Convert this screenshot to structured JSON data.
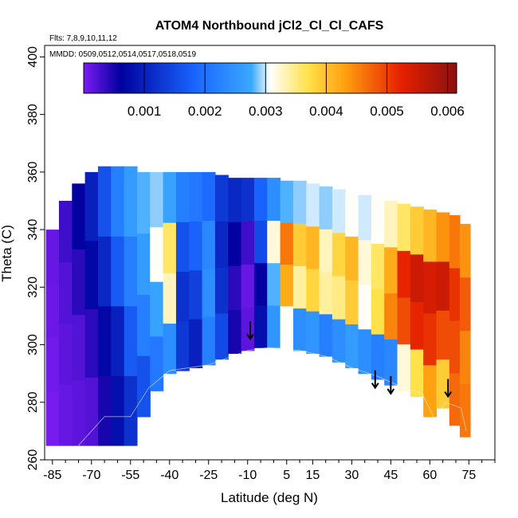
{
  "chart_data": {
    "type": "heatmap",
    "title": "ATOM4 Northbound jCl2_Cl_Cl_CAFS",
    "note_flights": "Flts: 7,8,9,10,11,12",
    "note_dates": "MMDD: 0509,0512,0514,0517,0518,0519",
    "xlabel": "Latitude (deg N)",
    "ylabel": "Theta (C)",
    "xlim": [
      -88,
      85
    ],
    "ylim": [
      260,
      404
    ],
    "x_ticks": [
      -85,
      -70,
      -55,
      -40,
      -25,
      -10,
      5,
      15,
      30,
      45,
      60,
      75
    ],
    "x_tick_labels": [
      "-85",
      "-70",
      "-55",
      "-40",
      "-25",
      "-10",
      "5",
      "15",
      "30",
      "45",
      "60",
      "75"
    ],
    "y_ticks": [
      260,
      280,
      300,
      320,
      340,
      360,
      380,
      400
    ],
    "y_tick_labels": [
      "260",
      "280",
      "300",
      "320",
      "340",
      "360",
      "380",
      "400"
    ],
    "colorbar": {
      "range": [
        0,
        0.00615
      ],
      "tick_values": [
        0.001,
        0.002,
        0.003,
        0.004,
        0.005,
        0.006
      ],
      "tick_labels": [
        "0.001",
        "0.002",
        "0.003",
        "0.004",
        "0.005",
        "0.006"
      ],
      "colors": [
        "#7b1cf2",
        "#00009e",
        "#1a66ff",
        "#3aa8ff",
        "#ffffff",
        "#ffe24a",
        "#ffa010",
        "#e62000",
        "#8b1010"
      ],
      "color_stops": [
        0,
        0.1,
        0.3,
        0.45,
        0.5,
        0.6,
        0.7,
        0.85,
        1.0
      ]
    },
    "grid": false,
    "arrows_latitude": [
      -9,
      39,
      45,
      67
    ],
    "bottom_boundary": [
      [
        -75,
        265
      ],
      [
        -65,
        275
      ],
      [
        -55,
        275
      ],
      [
        -48,
        285
      ],
      [
        -40,
        291
      ],
      [
        -25,
        293
      ],
      [
        -10,
        298
      ],
      [
        -2,
        299
      ],
      [
        10,
        298
      ],
      [
        20,
        296
      ],
      [
        30,
        292
      ],
      [
        40,
        289
      ],
      [
        50,
        285
      ],
      [
        57,
        283
      ],
      [
        62,
        274
      ],
      [
        66,
        280
      ],
      [
        72,
        278
      ],
      [
        74,
        270
      ]
    ],
    "top_boundary": [
      [
        -75,
        340
      ],
      [
        -70,
        355
      ],
      [
        -65,
        362
      ],
      [
        -55,
        360
      ],
      [
        -20,
        360
      ],
      [
        0,
        358
      ],
      [
        30,
        352
      ],
      [
        55,
        349
      ],
      [
        65,
        346
      ],
      [
        70,
        345
      ],
      [
        72,
        340
      ]
    ],
    "columns": [
      {
        "lat": -85,
        "low": 265,
        "high": 340,
        "values": [
          2e-05,
          5e-05,
          8e-05,
          0.0001
        ]
      },
      {
        "lat": -80,
        "low": 265,
        "high": 350,
        "values": [
          0.0001,
          0.00015,
          0.0002,
          0.0003
        ]
      },
      {
        "lat": -75,
        "low": 265,
        "high": 356,
        "values": [
          0.00015,
          0.0002,
          0.0004,
          0.0006
        ]
      },
      {
        "lat": -70,
        "low": 265,
        "high": 360,
        "values": [
          0.0002,
          0.0004,
          0.0007,
          0.001
        ]
      },
      {
        "lat": -65,
        "low": 265,
        "high": 362,
        "values": [
          0.0005,
          0.0007,
          0.0011,
          0.0016
        ]
      },
      {
        "lat": -60,
        "low": 265,
        "high": 362,
        "values": [
          0.0008,
          0.001,
          0.0017,
          0.0022
        ]
      },
      {
        "lat": -55,
        "low": 265,
        "high": 362,
        "values": [
          0.0012,
          0.0017,
          0.0022,
          0.0026
        ]
      },
      {
        "lat": -50,
        "low": 275,
        "high": 360,
        "values": [
          0.0016,
          0.0022,
          0.0026,
          0.0028
        ]
      },
      {
        "lat": -45,
        "low": 284,
        "high": 360,
        "values": [
          0.0021,
          0.0027,
          0.0031,
          0.0029
        ]
      },
      {
        "lat": -40,
        "low": 290,
        "high": 360,
        "values": [
          0.0024,
          0.0033,
          0.0036,
          0.0027
        ]
      },
      {
        "lat": -35,
        "low": 291,
        "high": 360,
        "values": [
          0.0013,
          0.0012,
          0.0016,
          0.0022
        ]
      },
      {
        "lat": -30,
        "low": 292,
        "high": 360,
        "values": [
          0.001,
          0.0014,
          0.0018,
          0.0021
        ]
      },
      {
        "lat": -25,
        "low": 293,
        "high": 360,
        "values": [
          0.0022,
          0.0024,
          0.0023,
          0.0019
        ]
      },
      {
        "lat": -20,
        "low": 295,
        "high": 359,
        "values": [
          0.0015,
          0.0012,
          0.0011,
          0.0013
        ]
      },
      {
        "lat": -15,
        "low": 297,
        "high": 358,
        "values": [
          0.0005,
          0.0004,
          0.0006,
          0.0011
        ]
      },
      {
        "lat": -10,
        "low": 298,
        "high": 358,
        "values": [
          0.00015,
          0.0001,
          0.0003,
          0.0012
        ]
      },
      {
        "lat": -5,
        "low": 299,
        "high": 358,
        "values": [
          0.0008,
          0.0006,
          0.0015,
          0.0018
        ]
      },
      {
        "lat": 0,
        "low": 299,
        "high": 358,
        "values": [
          0.0025,
          0.0028,
          0.0032,
          0.0024
        ]
      },
      {
        "lat": 5,
        "low": 299,
        "high": 357,
        "values": [
          0.0031,
          0.0042,
          0.0046,
          0.0028
        ]
      },
      {
        "lat": 10,
        "low": 298,
        "high": 357,
        "values": [
          0.0024,
          0.0034,
          0.0039,
          0.0029
        ]
      },
      {
        "lat": 15,
        "low": 297,
        "high": 356,
        "values": [
          0.0025,
          0.0038,
          0.0041,
          0.003
        ]
      },
      {
        "lat": 20,
        "low": 296,
        "high": 355,
        "values": [
          0.0022,
          0.0034,
          0.0033,
          0.0029
        ]
      },
      {
        "lat": 25,
        "low": 294,
        "high": 354,
        "values": [
          0.0024,
          0.0035,
          0.0038,
          0.003
        ]
      },
      {
        "lat": 30,
        "low": 292,
        "high": 353,
        "values": [
          0.0026,
          0.0039,
          0.0041,
          0.0031
        ]
      },
      {
        "lat": 35,
        "low": 290,
        "high": 352,
        "values": [
          0.0024,
          0.0031,
          0.0032,
          0.003
        ]
      },
      {
        "lat": 40,
        "low": 288,
        "high": 351,
        "values": [
          0.0022,
          0.0037,
          0.0036,
          0.0031
        ]
      },
      {
        "lat": 45,
        "low": 286,
        "high": 350,
        "values": [
          0.0023,
          0.0045,
          0.0042,
          0.0033
        ]
      },
      {
        "lat": 50,
        "low": 284,
        "high": 349,
        "values": [
          0.0032,
          0.0049,
          0.0052,
          0.0036
        ]
      },
      {
        "lat": 55,
        "low": 282,
        "high": 348,
        "values": [
          0.0037,
          0.0052,
          0.0055,
          0.0039
        ]
      },
      {
        "lat": 60,
        "low": 275,
        "high": 347,
        "values": [
          0.0043,
          0.0051,
          0.0054,
          0.0041
        ]
      },
      {
        "lat": 65,
        "low": 278,
        "high": 346,
        "values": [
          0.0039,
          0.0049,
          0.0055,
          0.0044
        ]
      },
      {
        "lat": 70,
        "low": 272,
        "high": 345,
        "values": [
          0.0047,
          0.0049,
          0.0051,
          0.0046
        ]
      },
      {
        "lat": 73,
        "low": 268,
        "high": 342,
        "values": [
          0.0046,
          0.0045,
          0.0048,
          0.0044
        ]
      }
    ]
  }
}
